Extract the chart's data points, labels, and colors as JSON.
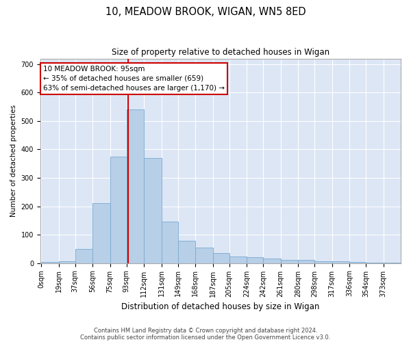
{
  "title1": "10, MEADOW BROOK, WIGAN, WN5 8ED",
  "title2": "Size of property relative to detached houses in Wigan",
  "xlabel": "Distribution of detached houses by size in Wigan",
  "ylabel": "Number of detached properties",
  "bin_edges": [
    0,
    19,
    37,
    56,
    75,
    93,
    112,
    131,
    149,
    168,
    187,
    205,
    224,
    242,
    261,
    280,
    298,
    317,
    336,
    354,
    373,
    392
  ],
  "bar_heights": [
    4,
    5,
    50,
    210,
    375,
    540,
    370,
    145,
    78,
    54,
    34,
    24,
    20,
    15,
    10,
    10,
    7,
    5,
    3,
    2,
    1
  ],
  "bar_color": "#b8cfe8",
  "bar_edge_color": "#7aaad0",
  "vline_x": 95,
  "vline_color": "#cc0000",
  "annotation_text": "10 MEADOW BROOK: 95sqm\n← 35% of detached houses are smaller (659)\n63% of semi-detached houses are larger (1,170) →",
  "annotation_box_facecolor": "#ffffff",
  "annotation_box_edgecolor": "#cc0000",
  "ylim": [
    0,
    720
  ],
  "yticks": [
    0,
    100,
    200,
    300,
    400,
    500,
    600,
    700
  ],
  "tick_labels": [
    "0sqm",
    "19sqm",
    "37sqm",
    "56sqm",
    "75sqm",
    "93sqm",
    "112sqm",
    "131sqm",
    "149sqm",
    "168sqm",
    "187sqm",
    "205sqm",
    "224sqm",
    "242sqm",
    "261sqm",
    "280sqm",
    "298sqm",
    "317sqm",
    "336sqm",
    "354sqm",
    "373sqm"
  ],
  "footer1": "Contains HM Land Registry data © Crown copyright and database right 2024.",
  "footer2": "Contains public sector information licensed under the Open Government Licence v3.0.",
  "plot_bg_color": "#dce6f5",
  "fig_bg_color": "#ffffff",
  "grid_color": "#ffffff",
  "title1_fontsize": 10.5,
  "title2_fontsize": 8.5,
  "ylabel_fontsize": 7.5,
  "xlabel_fontsize": 8.5,
  "tick_fontsize": 7,
  "footer_fontsize": 6,
  "annot_fontsize": 7.5
}
